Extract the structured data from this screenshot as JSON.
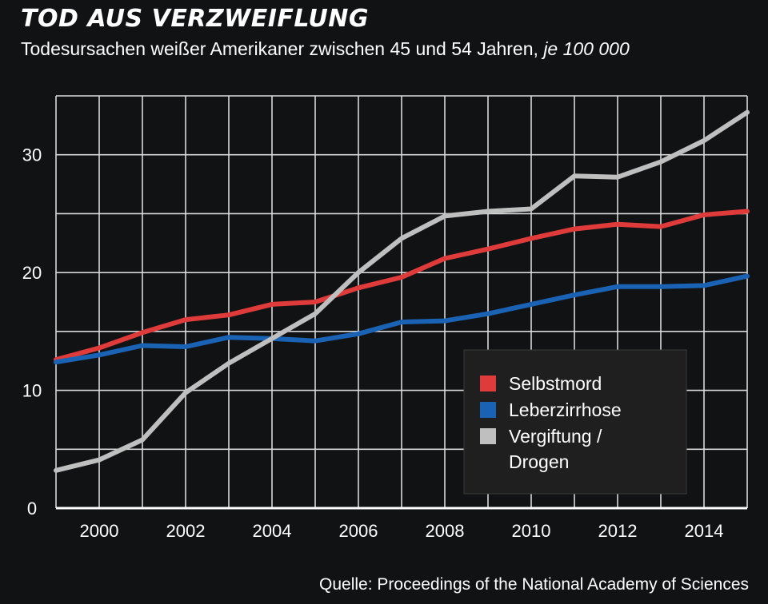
{
  "header": {
    "title": "TOD AUS VERZWEIFLUNG",
    "subtitle_main": "Todesursachen weißer Amerikaner zwischen 45 und 54 Jahren, ",
    "subtitle_unit": "je 100 000"
  },
  "source": "Quelle: Proceedings of the National Academy of Sciences",
  "chart_data": {
    "type": "line",
    "title": "TOD AUS VERZWEIFLUNG",
    "subtitle": "Todesursachen weißer Amerikaner zwischen 45 und 54 Jahren, je 100 000",
    "x": [
      1999,
      2000,
      2001,
      2002,
      2003,
      2004,
      2005,
      2006,
      2007,
      2008,
      2009,
      2010,
      2011,
      2012,
      2013,
      2014,
      2015
    ],
    "xlim": [
      1999,
      2015
    ],
    "ylim": [
      0,
      35
    ],
    "x_ticks": [
      "2000",
      "2002",
      "2004",
      "2006",
      "2008",
      "2010",
      "2012",
      "2014"
    ],
    "y_ticks": [
      "0",
      "10",
      "20",
      "30"
    ],
    "grid": true,
    "legend_position": "bottom-right",
    "series": [
      {
        "name": "Selbstmord",
        "color": "#e03b3b",
        "values": [
          12.6,
          13.6,
          14.9,
          16.0,
          16.4,
          17.3,
          17.5,
          18.7,
          19.6,
          21.2,
          22.0,
          22.9,
          23.7,
          24.1,
          23.9,
          24.9,
          25.2
        ]
      },
      {
        "name": "Leberzirrhose",
        "color": "#1a62b4",
        "values": [
          12.4,
          13.0,
          13.8,
          13.7,
          14.5,
          14.4,
          14.2,
          14.8,
          15.8,
          15.9,
          16.5,
          17.3,
          18.1,
          18.8,
          18.8,
          18.9,
          19.7
        ]
      },
      {
        "name": "Vergiftung / Drogen",
        "legend_lines": [
          "Vergiftung /",
          "Drogen"
        ],
        "color": "#bfbfbf",
        "values": [
          3.2,
          4.1,
          5.8,
          9.8,
          12.3,
          14.4,
          16.5,
          20.0,
          22.9,
          24.8,
          25.2,
          25.4,
          28.2,
          28.1,
          29.4,
          31.2,
          33.6
        ]
      }
    ]
  }
}
